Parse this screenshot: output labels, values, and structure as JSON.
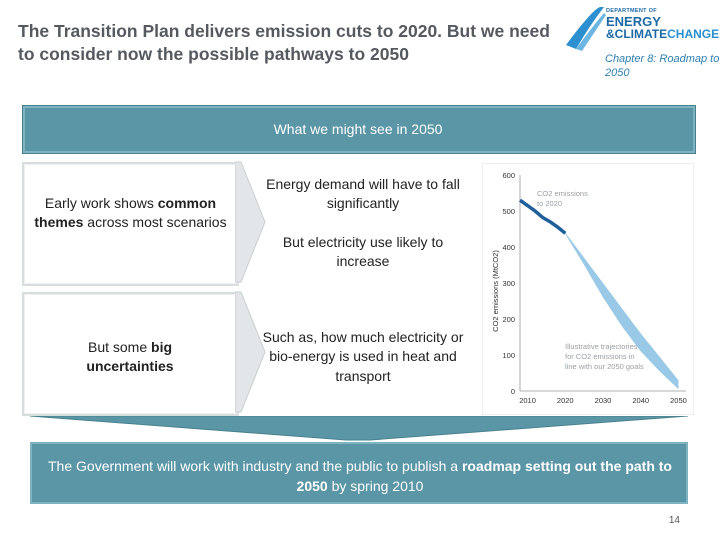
{
  "title": "The Transition Plan delivers emission cuts to 2020. But we need to consider now the possible pathways to 2050",
  "logo": {
    "line1": "DEPARTMENT OF",
    "line2": "ENERGY",
    "line3_a": "&CLIMATE",
    "line3_b": "CHANGE"
  },
  "chapter_note": "Chapter 8: Roadmap to 2050",
  "banner": "What we might see in 2050",
  "left": {
    "top_pre": "Early work shows ",
    "top_bold": "common themes",
    "top_post": " across most scenarios",
    "bottom_pre": "But some ",
    "bottom_bold": "big uncertainties"
  },
  "middle": {
    "item1": "Energy demand will have to fall significantly",
    "item2": "But electricity use likely to increase",
    "item3": "Such as, how much electricity or bio-energy is used in heat and transport"
  },
  "footer": {
    "pre": "The Government will work with industry and the public to publish a ",
    "bold": "roadmap setting out the path to 2050",
    "post": " by spring 2010"
  },
  "page_number": "14",
  "colors": {
    "teal": "#5b96a6",
    "series_dark": "#1f5f9a",
    "series_light": "#8fc3e4",
    "title_grey": "#555a60"
  },
  "chart_data": {
    "type": "area",
    "ylabel": "CO2 emissions (MtCO2)",
    "xlabel": "",
    "x_ticks": [
      "2010",
      "2020",
      "2030",
      "2040",
      "2050"
    ],
    "y_ticks": [
      "0",
      "100",
      "200",
      "300",
      "400",
      "500",
      "600"
    ],
    "xlim": [
      2008,
      2052
    ],
    "ylim": [
      0,
      600
    ],
    "series": [
      {
        "name": "CO2 emissions to 2020",
        "x": [
          2008,
          2010,
          2012,
          2014,
          2016,
          2018,
          2020
        ],
        "y": [
          530,
          515,
          500,
          482,
          470,
          455,
          438
        ]
      },
      {
        "name": "Illustrative trajectories for CO2 emissions in line with our 2050 goals",
        "x": [
          2020,
          2025,
          2030,
          2035,
          2040,
          2045,
          2050
        ],
        "y_upper": [
          440,
          370,
          300,
          230,
          160,
          95,
          30
        ],
        "y_lower": [
          436,
          350,
          260,
          180,
          110,
          55,
          5
        ]
      }
    ],
    "annotations": {
      "a1_line1": "CO2 emissions",
      "a1_line2": "to 2020",
      "a2_line1": "Illustrative trajectories",
      "a2_line2": "for CO2 emissions in",
      "a2_line3": "line with our 2050 goals"
    }
  }
}
